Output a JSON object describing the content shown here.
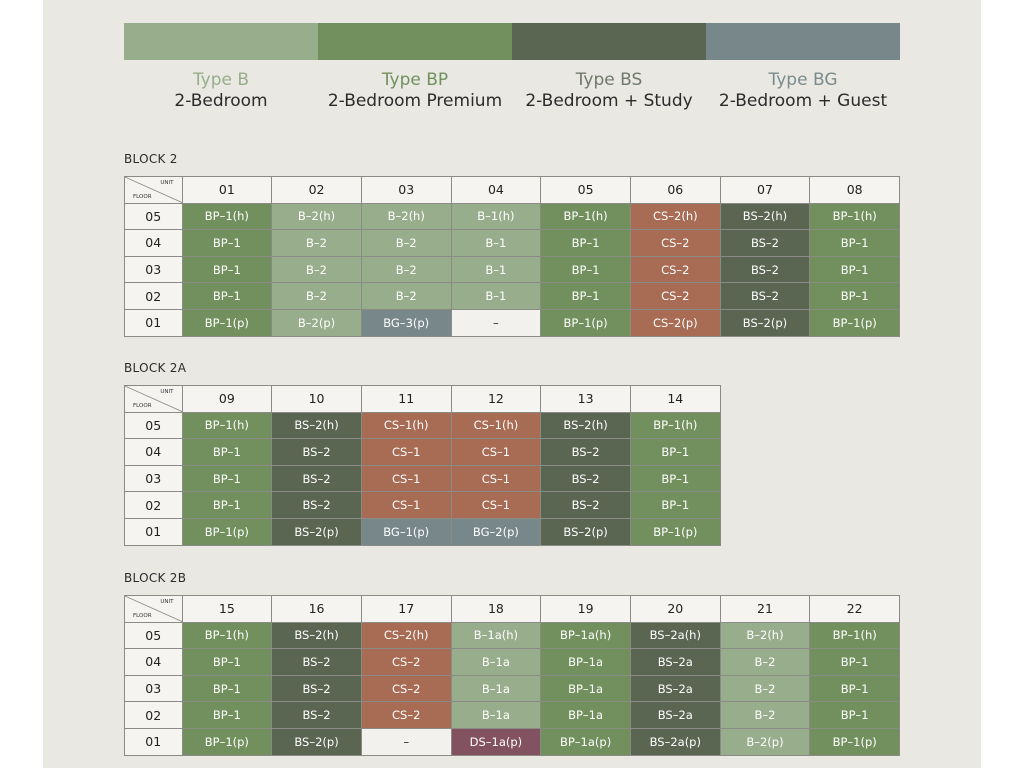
{
  "colors": {
    "B": "#98ad8b",
    "BP": "#72905e",
    "BS": "#5a6552",
    "BG": "#78888a",
    "CS": "#a86b54",
    "DS": "#835261",
    "B_text": "#98ad8b",
    "BP_text": "#72905e",
    "BS_text": "#707868",
    "BG_text": "#7b8b8d"
  },
  "legend": [
    {
      "type": "Type B",
      "desc": "2-Bedroom",
      "color_key": "B"
    },
    {
      "type": "Type BP",
      "desc": "2-Bedroom Premium",
      "color_key": "BP"
    },
    {
      "type": "Type BS",
      "desc": "2-Bedroom + Study",
      "color_key": "BS"
    },
    {
      "type": "Type BG",
      "desc": "2-Bedroom + Guest",
      "color_key": "BG"
    }
  ],
  "header_corner": {
    "unit": "UNIT",
    "floor": "FLOOR"
  },
  "blocks": [
    {
      "title": "BLOCK 2",
      "units": [
        "01",
        "02",
        "03",
        "04",
        "05",
        "06",
        "07",
        "08"
      ],
      "rows": [
        {
          "floor": "05",
          "cells": [
            [
              "BP–1(h)",
              "BP"
            ],
            [
              "B–2(h)",
              "B"
            ],
            [
              "B–2(h)",
              "B"
            ],
            [
              "B–1(h)",
              "B"
            ],
            [
              "BP–1(h)",
              "BP"
            ],
            [
              "CS–2(h)",
              "CS"
            ],
            [
              "BS–2(h)",
              "BS"
            ],
            [
              "BP–1(h)",
              "BP"
            ]
          ]
        },
        {
          "floor": "04",
          "cells": [
            [
              "BP–1",
              "BP"
            ],
            [
              "B–2",
              "B"
            ],
            [
              "B–2",
              "B"
            ],
            [
              "B–1",
              "B"
            ],
            [
              "BP–1",
              "BP"
            ],
            [
              "CS–2",
              "CS"
            ],
            [
              "BS–2",
              "BS"
            ],
            [
              "BP–1",
              "BP"
            ]
          ]
        },
        {
          "floor": "03",
          "cells": [
            [
              "BP–1",
              "BP"
            ],
            [
              "B–2",
              "B"
            ],
            [
              "B–2",
              "B"
            ],
            [
              "B–1",
              "B"
            ],
            [
              "BP–1",
              "BP"
            ],
            [
              "CS–2",
              "CS"
            ],
            [
              "BS–2",
              "BS"
            ],
            [
              "BP–1",
              "BP"
            ]
          ]
        },
        {
          "floor": "02",
          "cells": [
            [
              "BP–1",
              "BP"
            ],
            [
              "B–2",
              "B"
            ],
            [
              "B–2",
              "B"
            ],
            [
              "B–1",
              "B"
            ],
            [
              "BP–1",
              "BP"
            ],
            [
              "CS–2",
              "CS"
            ],
            [
              "BS–2",
              "BS"
            ],
            [
              "BP–1",
              "BP"
            ]
          ]
        },
        {
          "floor": "01",
          "cells": [
            [
              "BP–1(p)",
              "BP"
            ],
            [
              "B–2(p)",
              "B"
            ],
            [
              "BG–3(p)",
              "BG"
            ],
            [
              "–",
              "empty"
            ],
            [
              "BP–1(p)",
              "BP"
            ],
            [
              "CS–2(p)",
              "CS"
            ],
            [
              "BS–2(p)",
              "BS"
            ],
            [
              "BP–1(p)",
              "BP"
            ]
          ]
        }
      ]
    },
    {
      "title": "BLOCK 2A",
      "units": [
        "09",
        "10",
        "11",
        "12",
        "13",
        "14"
      ],
      "rows": [
        {
          "floor": "05",
          "cells": [
            [
              "BP–1(h)",
              "BP"
            ],
            [
              "BS–2(h)",
              "BS"
            ],
            [
              "CS–1(h)",
              "CS"
            ],
            [
              "CS–1(h)",
              "CS"
            ],
            [
              "BS–2(h)",
              "BS"
            ],
            [
              "BP–1(h)",
              "BP"
            ]
          ]
        },
        {
          "floor": "04",
          "cells": [
            [
              "BP–1",
              "BP"
            ],
            [
              "BS–2",
              "BS"
            ],
            [
              "CS–1",
              "CS"
            ],
            [
              "CS–1",
              "CS"
            ],
            [
              "BS–2",
              "BS"
            ],
            [
              "BP–1",
              "BP"
            ]
          ]
        },
        {
          "floor": "03",
          "cells": [
            [
              "BP–1",
              "BP"
            ],
            [
              "BS–2",
              "BS"
            ],
            [
              "CS–1",
              "CS"
            ],
            [
              "CS–1",
              "CS"
            ],
            [
              "BS–2",
              "BS"
            ],
            [
              "BP–1",
              "BP"
            ]
          ]
        },
        {
          "floor": "02",
          "cells": [
            [
              "BP–1",
              "BP"
            ],
            [
              "BS–2",
              "BS"
            ],
            [
              "CS–1",
              "CS"
            ],
            [
              "CS–1",
              "CS"
            ],
            [
              "BS–2",
              "BS"
            ],
            [
              "BP–1",
              "BP"
            ]
          ]
        },
        {
          "floor": "01",
          "cells": [
            [
              "BP–1(p)",
              "BP"
            ],
            [
              "BS–2(p)",
              "BS"
            ],
            [
              "BG–1(p)",
              "BG"
            ],
            [
              "BG–2(p)",
              "BG"
            ],
            [
              "BS–2(p)",
              "BS"
            ],
            [
              "BP–1(p)",
              "BP"
            ]
          ]
        }
      ]
    },
    {
      "title": "BLOCK 2B",
      "units": [
        "15",
        "16",
        "17",
        "18",
        "19",
        "20",
        "21",
        "22"
      ],
      "rows": [
        {
          "floor": "05",
          "cells": [
            [
              "BP–1(h)",
              "BP"
            ],
            [
              "BS–2(h)",
              "BS"
            ],
            [
              "CS–2(h)",
              "CS"
            ],
            [
              "B–1a(h)",
              "B"
            ],
            [
              "BP–1a(h)",
              "BP"
            ],
            [
              "BS–2a(h)",
              "BS"
            ],
            [
              "B–2(h)",
              "B"
            ],
            [
              "BP–1(h)",
              "BP"
            ]
          ]
        },
        {
          "floor": "04",
          "cells": [
            [
              "BP–1",
              "BP"
            ],
            [
              "BS–2",
              "BS"
            ],
            [
              "CS–2",
              "CS"
            ],
            [
              "B–1a",
              "B"
            ],
            [
              "BP–1a",
              "BP"
            ],
            [
              "BS–2a",
              "BS"
            ],
            [
              "B–2",
              "B"
            ],
            [
              "BP–1",
              "BP"
            ]
          ]
        },
        {
          "floor": "03",
          "cells": [
            [
              "BP–1",
              "BP"
            ],
            [
              "BS–2",
              "BS"
            ],
            [
              "CS–2",
              "CS"
            ],
            [
              "B–1a",
              "B"
            ],
            [
              "BP–1a",
              "BP"
            ],
            [
              "BS–2a",
              "BS"
            ],
            [
              "B–2",
              "B"
            ],
            [
              "BP–1",
              "BP"
            ]
          ]
        },
        {
          "floor": "02",
          "cells": [
            [
              "BP–1",
              "BP"
            ],
            [
              "BS–2",
              "BS"
            ],
            [
              "CS–2",
              "CS"
            ],
            [
              "B–1a",
              "B"
            ],
            [
              "BP–1a",
              "BP"
            ],
            [
              "BS–2a",
              "BS"
            ],
            [
              "B–2",
              "B"
            ],
            [
              "BP–1",
              "BP"
            ]
          ]
        },
        {
          "floor": "01",
          "cells": [
            [
              "BP–1(p)",
              "BP"
            ],
            [
              "BS–2(p)",
              "BS"
            ],
            [
              "–",
              "empty"
            ],
            [
              "DS–1a(p)",
              "DS"
            ],
            [
              "BP–1a(p)",
              "BP"
            ],
            [
              "BS–2a(p)",
              "BS"
            ],
            [
              "B–2(p)",
              "B"
            ],
            [
              "BP–1(p)",
              "BP"
            ]
          ]
        }
      ]
    }
  ]
}
